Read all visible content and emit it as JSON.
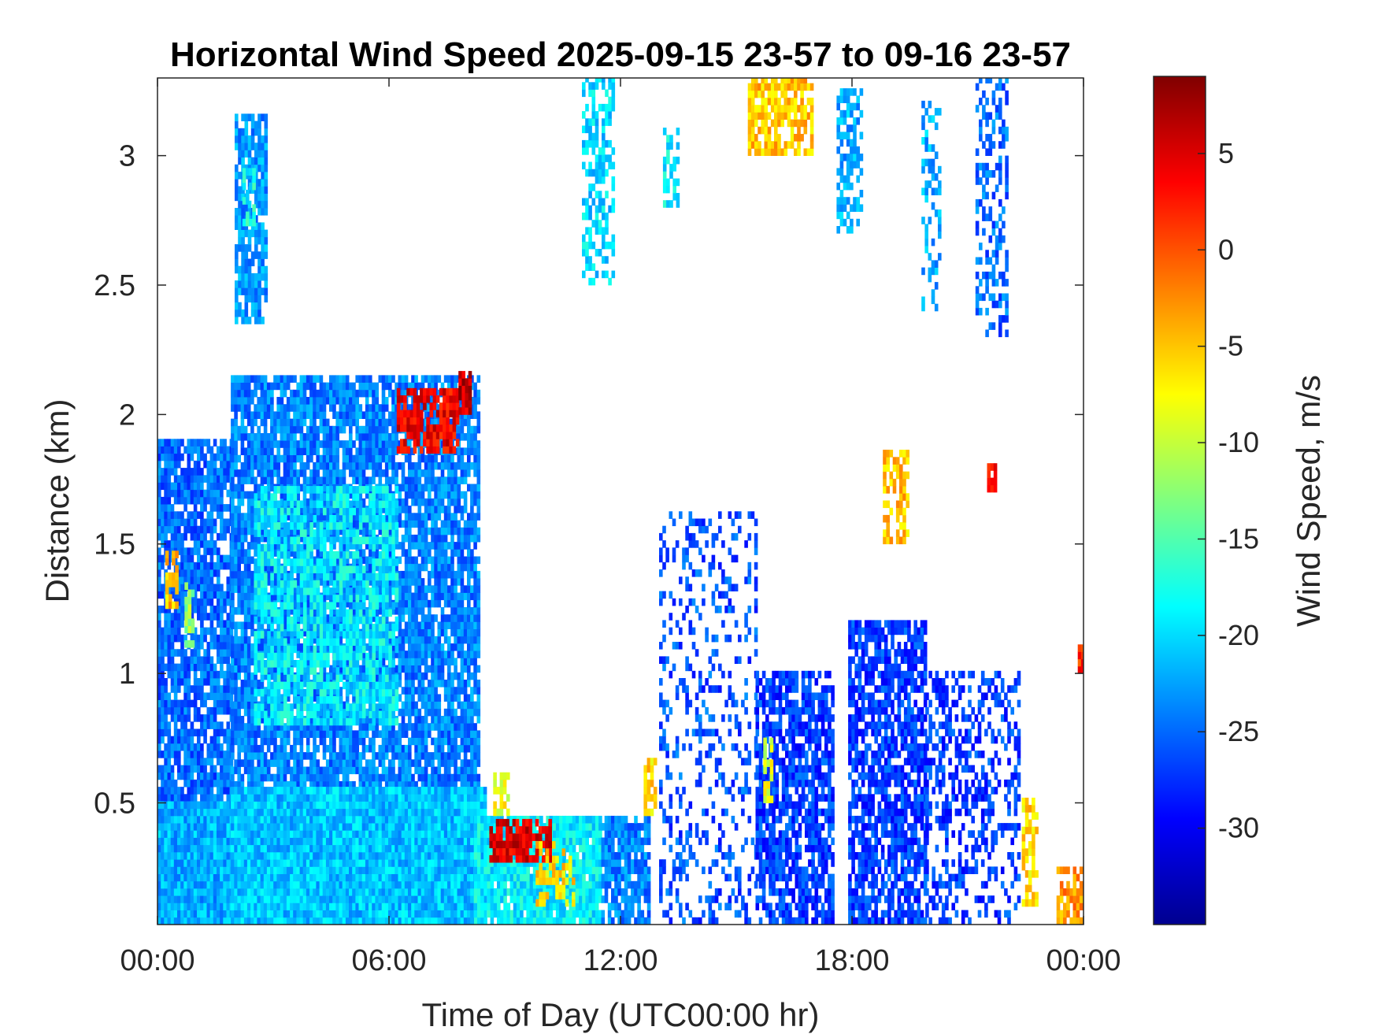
{
  "chart_data": {
    "type": "heatmap",
    "title": "Horizontal Wind Speed 2025-09-15 23-57 to 09-16 23-57",
    "xlabel": "Time of Day (UTC00:00 hr)",
    "ylabel": "Distance (km)",
    "xlim_hours": [
      0,
      24
    ],
    "ylim": [
      0.03,
      3.3
    ],
    "xticks": [
      {
        "value": 0,
        "label": "00:00"
      },
      {
        "value": 6,
        "label": "06:00"
      },
      {
        "value": 12,
        "label": "12:00"
      },
      {
        "value": 18,
        "label": "18:00"
      },
      {
        "value": 24,
        "label": "00:00"
      }
    ],
    "yticks": [
      {
        "value": 0.5,
        "label": "0.5"
      },
      {
        "value": 1,
        "label": "1"
      },
      {
        "value": 1.5,
        "label": "1.5"
      },
      {
        "value": 2,
        "label": "2"
      },
      {
        "value": 2.5,
        "label": "2.5"
      },
      {
        "value": 3,
        "label": "3"
      }
    ],
    "colorbar": {
      "label": "Wind Speed, m/s",
      "colormap": "jet",
      "clim": [
        -35,
        9
      ],
      "ticks": [
        {
          "value": 5,
          "label": "5"
        },
        {
          "value": 0,
          "label": "0"
        },
        {
          "value": -5,
          "label": "-5"
        },
        {
          "value": -10,
          "label": "-10"
        },
        {
          "value": -15,
          "label": "-15"
        },
        {
          "value": -20,
          "label": "-20"
        },
        {
          "value": -25,
          "label": "-25"
        },
        {
          "value": -30,
          "label": "-30"
        }
      ]
    },
    "grid": false,
    "regions": [
      {
        "t0": 0.0,
        "t1": 1.9,
        "h0": 0.03,
        "h1": 1.9,
        "v": -25,
        "density": 0.85
      },
      {
        "t0": 0.0,
        "t1": 1.9,
        "h0": 0.03,
        "h1": 0.5,
        "v": -22,
        "density": 1.0
      },
      {
        "t0": 0.2,
        "t1": 0.5,
        "h0": 1.25,
        "h1": 1.45,
        "v": -5,
        "density": 0.7
      },
      {
        "t0": 0.7,
        "t1": 0.9,
        "h0": 1.1,
        "h1": 1.35,
        "v": -12,
        "density": 0.6
      },
      {
        "t0": 1.9,
        "t1": 8.3,
        "h0": 0.5,
        "h1": 2.15,
        "v": -24,
        "density": 0.85
      },
      {
        "t0": 2.5,
        "t1": 6.2,
        "h0": 0.8,
        "h1": 1.7,
        "v": -19,
        "density": 0.7
      },
      {
        "t0": 1.9,
        "t1": 8.5,
        "h0": 0.03,
        "h1": 0.55,
        "v": -21,
        "density": 1.0
      },
      {
        "t0": 2.0,
        "t1": 2.8,
        "h0": 2.35,
        "h1": 3.15,
        "v": -23,
        "density": 0.8
      },
      {
        "t0": 2.2,
        "t1": 2.5,
        "h0": 2.7,
        "h1": 2.95,
        "v": -18,
        "density": 0.6
      },
      {
        "t0": 6.2,
        "t1": 7.8,
        "h0": 1.85,
        "h1": 2.08,
        "v": 4,
        "density": 0.8
      },
      {
        "t0": 7.8,
        "t1": 8.1,
        "h0": 2.0,
        "h1": 2.15,
        "v": 6,
        "density": 0.9
      },
      {
        "t0": 8.2,
        "t1": 11.5,
        "h0": 0.03,
        "h1": 0.45,
        "v": -19,
        "density": 0.95
      },
      {
        "t0": 8.6,
        "t1": 10.2,
        "h0": 0.27,
        "h1": 0.42,
        "v": 5,
        "density": 0.8
      },
      {
        "t0": 9.8,
        "t1": 10.8,
        "h0": 0.1,
        "h1": 0.35,
        "v": -6,
        "density": 0.5
      },
      {
        "t0": 8.7,
        "t1": 9.1,
        "h0": 0.45,
        "h1": 0.6,
        "v": -8,
        "density": 0.6
      },
      {
        "t0": 11.5,
        "t1": 12.7,
        "h0": 0.03,
        "h1": 0.45,
        "v": -24,
        "density": 0.8
      },
      {
        "t0": 12.6,
        "t1": 12.9,
        "h0": 0.45,
        "h1": 0.65,
        "v": -6,
        "density": 0.6
      },
      {
        "t0": 13.0,
        "t1": 15.5,
        "h0": 0.03,
        "h1": 1.6,
        "v": -26,
        "density": 0.25
      },
      {
        "t0": 15.5,
        "t1": 17.5,
        "h0": 0.03,
        "h1": 1.0,
        "v": -27,
        "density": 0.75
      },
      {
        "t0": 15.7,
        "t1": 15.9,
        "h0": 0.5,
        "h1": 0.75,
        "v": -9,
        "density": 0.6
      },
      {
        "t0": 15.3,
        "t1": 17.0,
        "h0": 3.0,
        "h1": 3.3,
        "v": -5,
        "density": 0.8
      },
      {
        "t0": 11.0,
        "t1": 11.8,
        "h0": 2.5,
        "h1": 3.3,
        "v": -20,
        "density": 0.5
      },
      {
        "t0": 13.1,
        "t1": 13.5,
        "h0": 2.8,
        "h1": 3.1,
        "v": -19,
        "density": 0.6
      },
      {
        "t0": 17.6,
        "t1": 18.2,
        "h0": 2.7,
        "h1": 3.25,
        "v": -22,
        "density": 0.6
      },
      {
        "t0": 17.9,
        "t1": 19.9,
        "h0": 0.03,
        "h1": 1.2,
        "v": -27,
        "density": 0.75
      },
      {
        "t0": 18.8,
        "t1": 19.4,
        "h0": 1.5,
        "h1": 1.85,
        "v": -5,
        "density": 0.6
      },
      {
        "t0": 19.9,
        "t1": 22.3,
        "h0": 0.03,
        "h1": 1.0,
        "v": -27,
        "density": 0.4
      },
      {
        "t0": 19.8,
        "t1": 20.3,
        "h0": 2.4,
        "h1": 3.2,
        "v": -22,
        "density": 0.4
      },
      {
        "t0": 21.2,
        "t1": 22.0,
        "h0": 2.3,
        "h1": 3.3,
        "v": -25,
        "density": 0.45
      },
      {
        "t0": 22.4,
        "t1": 22.8,
        "h0": 0.1,
        "h1": 0.5,
        "v": -6,
        "density": 0.6
      },
      {
        "t0": 23.3,
        "t1": 23.9,
        "h0": 0.03,
        "h1": 0.25,
        "v": -3,
        "density": 0.7
      },
      {
        "t0": 23.85,
        "t1": 24.0,
        "h0": 1.0,
        "h1": 1.1,
        "v": 2,
        "density": 0.9
      },
      {
        "t0": 21.5,
        "t1": 21.7,
        "h0": 1.7,
        "h1": 1.8,
        "v": 4,
        "density": 0.9
      }
    ]
  }
}
